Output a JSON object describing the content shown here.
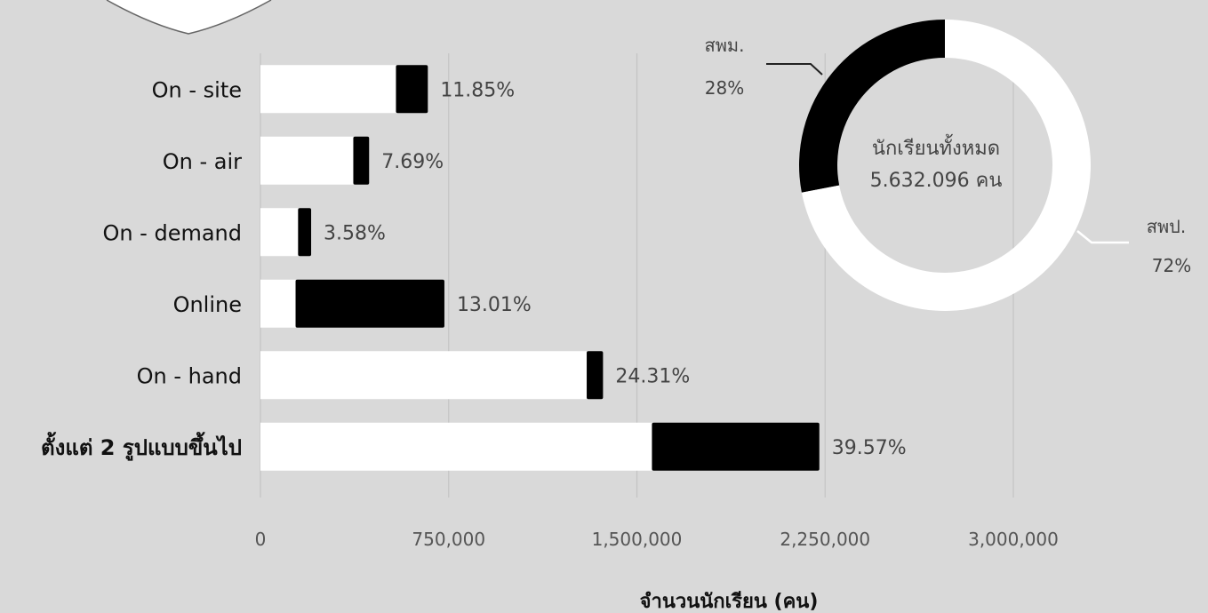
{
  "chart_data": [
    {
      "type": "bar",
      "stacked": true,
      "orientation": "horizontal",
      "categories": [
        "On - site",
        "On - air",
        "On - demand",
        "Online",
        "On - hand",
        "ตั้งแต่ 2 รูปแบบขึ้นไป"
      ],
      "series": [
        {
          "values": [
            540000,
            370000,
            150000,
            140000,
            1300000,
            1560000
          ],
          "color": "#ffffff"
        },
        {
          "values": [
            127000,
            63000,
            52000,
            593000,
            65000,
            667000
          ],
          "color": "#000000"
        }
      ],
      "data_labels": [
        "11.85%",
        "7.69%",
        "3.58%",
        "13.01%",
        "24.31%",
        "39.57%"
      ],
      "xlabel": "จำนวนนักเรียน (คน)",
      "xlim": [
        0,
        3000000
      ],
      "xticks": [
        0,
        750000,
        1500000,
        2250000,
        3000000
      ],
      "xtick_labels": [
        "0",
        "750,000",
        "1,500,000",
        "2,250,000",
        "3,000,000"
      ],
      "grid": "vertical"
    },
    {
      "type": "pie",
      "donut": true,
      "center_label": [
        "นักเรียนทั้งหมด",
        "5.632.096 คน"
      ],
      "slices": [
        {
          "label": "สพป.",
          "percent_label": "72%",
          "value": 72,
          "color": "#ffffff"
        },
        {
          "label": "สพม.",
          "percent_label": "28%",
          "value": 28,
          "color": "#000000"
        }
      ]
    }
  ]
}
